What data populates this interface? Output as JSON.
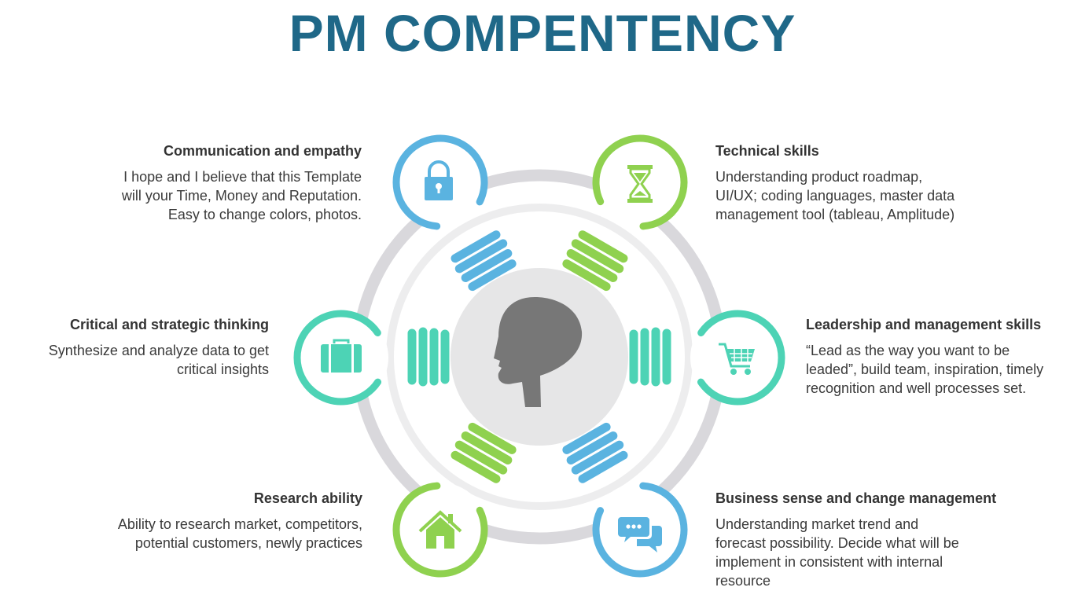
{
  "page_title": "PM COMPENTENCY",
  "colors": {
    "title": "#1f6888",
    "blue": "#5ab3e0",
    "green": "#8fd14f",
    "teal": "#4dd3b5",
    "ring": "#d9d8dc",
    "ring_light": "#ededee",
    "center": "#e6e6e7",
    "head": "#777777"
  },
  "competencies": [
    {
      "id": "communication",
      "title": "Communication and empathy",
      "description": "I hope and I believe that this Template\nwill your Time, Money and Reputation.\nEasy to change colors, photos.",
      "icon": "lock-icon",
      "color": "blue"
    },
    {
      "id": "technical",
      "title": "Technical skills",
      "description": "Understanding product roadmap,\nUI/UX; coding languages, master data\nmanagement tool (tableau, Amplitude)",
      "icon": "hourglass-icon",
      "color": "green"
    },
    {
      "id": "critical",
      "title": "Critical and strategic thinking",
      "description": "Synthesize and analyze data to get\ncritical insights",
      "icon": "briefcase-icon",
      "color": "teal"
    },
    {
      "id": "leadership",
      "title": "Leadership and management skills",
      "description": "“Lead as the way you want to be\nleaded”, build team, inspiration, timely\nrecognition and well processes set.",
      "icon": "shopping-cart-icon",
      "color": "teal"
    },
    {
      "id": "research",
      "title": "Research ability",
      "description": "Ability to research market, competitors,\npotential customers, newly practices",
      "icon": "house-icon",
      "color": "green"
    },
    {
      "id": "business",
      "title": "Business sense and change management",
      "description": "Understanding market trend and\nforecast possibility. Decide what will be\nimplement in consistent with internal\nresource",
      "icon": "chat-bubbles-icon",
      "color": "blue"
    }
  ]
}
